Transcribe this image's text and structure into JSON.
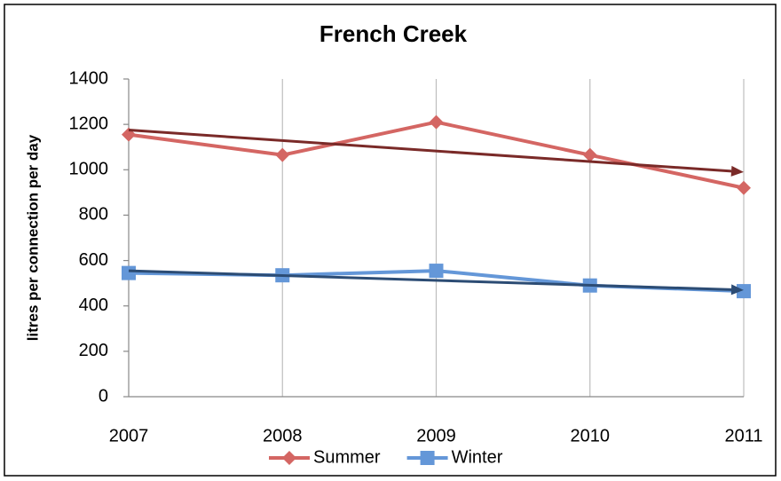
{
  "chart_data": {
    "type": "line",
    "title": "French Creek",
    "y_label": "litres per connection per day",
    "categories": [
      "2007",
      "2008",
      "2009",
      "2010",
      "2011"
    ],
    "series": [
      {
        "name": "Summer",
        "color": "#d46663",
        "marker": "diamond",
        "values": [
          1155,
          1065,
          1210,
          1065,
          920
        ],
        "trend": {
          "color": "#7a2a28",
          "values": [
            1175,
            990
          ]
        }
      },
      {
        "name": "Winter",
        "color": "#6497d8",
        "marker": "square",
        "values": [
          545,
          535,
          555,
          490,
          465
        ],
        "trend": {
          "color": "#2c4c74",
          "values": [
            555,
            470
          ]
        }
      }
    ],
    "ylim": [
      0,
      1400
    ],
    "yticks": [
      0,
      200,
      400,
      600,
      800,
      1000,
      1200,
      1400
    ],
    "grid": true,
    "legend": "bottom"
  }
}
